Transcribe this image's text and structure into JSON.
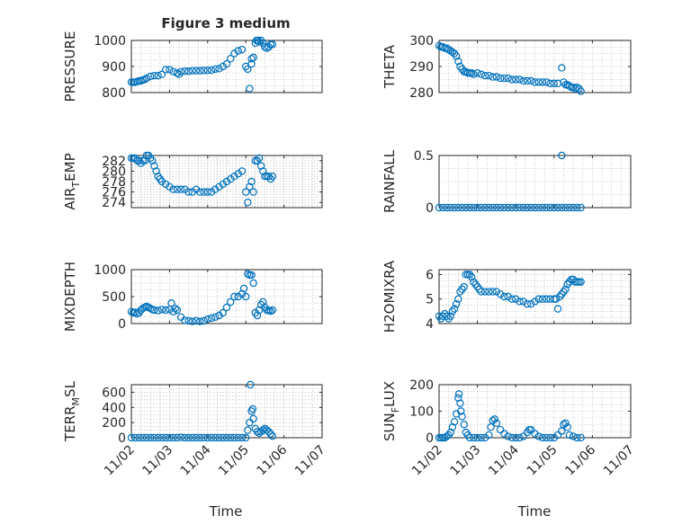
{
  "figure": {
    "title": "Figure 3 medium",
    "xlabel_left": "Time",
    "xlabel_right": "Time",
    "x_ticks": [
      "11/02",
      "11/03",
      "11/04",
      "11/05",
      "11/06",
      "11/07"
    ],
    "marker_color": "#0072bd",
    "grid": "dotted minor + major"
  },
  "chart_data": [
    {
      "type": "scatter",
      "ylabel": "PRESSURE",
      "ylim": [
        800,
        1000
      ],
      "yticks": [
        800,
        900,
        1000
      ],
      "xlim": [
        0,
        5
      ],
      "x": [
        0.0,
        0.05,
        0.1,
        0.15,
        0.2,
        0.25,
        0.3,
        0.35,
        0.4,
        0.5,
        0.6,
        0.7,
        0.8,
        0.9,
        1.0,
        1.1,
        1.2,
        1.25,
        1.3,
        1.4,
        1.5,
        1.6,
        1.7,
        1.8,
        1.9,
        2.0,
        2.1,
        2.2,
        2.3,
        2.4,
        2.5,
        2.6,
        2.7,
        2.8,
        2.9,
        3.0,
        3.05,
        3.1,
        3.15,
        3.15,
        3.2,
        3.25,
        3.28,
        3.32,
        3.35,
        3.4,
        3.45,
        3.5,
        3.55,
        3.6,
        3.65,
        3.7
      ],
      "y": [
        840,
        840,
        840,
        842,
        845,
        845,
        848,
        850,
        855,
        862,
        865,
        865,
        870,
        888,
        888,
        880,
        875,
        870,
        880,
        882,
        882,
        884,
        884,
        884,
        885,
        885,
        886,
        890,
        892,
        900,
        910,
        930,
        950,
        960,
        965,
        900,
        890,
        815,
        910,
        930,
        935,
        990,
        1000,
        1000,
        995,
        1000,
        990,
        975,
        970,
        975,
        985,
        985
      ]
    },
    {
      "type": "scatter",
      "ylabel": "THETA",
      "ylim": [
        280,
        300
      ],
      "yticks": [
        280,
        290,
        300
      ],
      "xlim": [
        0,
        5
      ],
      "x": [
        0.0,
        0.05,
        0.1,
        0.15,
        0.2,
        0.25,
        0.3,
        0.35,
        0.4,
        0.45,
        0.5,
        0.55,
        0.6,
        0.65,
        0.7,
        0.75,
        0.8,
        0.85,
        0.9,
        1.0,
        1.1,
        1.2,
        1.3,
        1.4,
        1.5,
        1.6,
        1.7,
        1.8,
        1.9,
        2.0,
        2.1,
        2.2,
        2.3,
        2.4,
        2.5,
        2.6,
        2.7,
        2.8,
        2.9,
        3.0,
        3.1,
        3.2,
        3.25,
        3.3,
        3.35,
        3.4,
        3.45,
        3.5,
        3.55,
        3.6,
        3.65,
        3.7
      ],
      "y": [
        298,
        297.5,
        297.5,
        297,
        297,
        296.5,
        296,
        295.5,
        295,
        294,
        292,
        290,
        289,
        288,
        288,
        287.5,
        287.5,
        287.5,
        287,
        287.5,
        287,
        286.5,
        286.5,
        286,
        286,
        285.5,
        285.5,
        285.5,
        285,
        285,
        285,
        284.5,
        284.5,
        284.5,
        284,
        284,
        284,
        284,
        283.5,
        283.5,
        283.5,
        289.5,
        284,
        283,
        283,
        282.5,
        282,
        282,
        281.5,
        282,
        281.5,
        280.5
      ]
    },
    {
      "type": "scatter",
      "ylabel": "AIR_TEMP",
      "ylim": [
        273,
        283
      ],
      "yticks": [
        274,
        276,
        278,
        280,
        282
      ],
      "xlim": [
        0,
        5
      ],
      "x": [
        0.0,
        0.05,
        0.1,
        0.15,
        0.2,
        0.25,
        0.3,
        0.35,
        0.4,
        0.45,
        0.5,
        0.55,
        0.6,
        0.65,
        0.7,
        0.75,
        0.8,
        0.9,
        1.0,
        1.1,
        1.2,
        1.3,
        1.4,
        1.5,
        1.6,
        1.7,
        1.8,
        1.9,
        2.0,
        2.1,
        2.2,
        2.3,
        2.4,
        2.5,
        2.6,
        2.7,
        2.8,
        2.9,
        3.0,
        3.05,
        3.1,
        3.15,
        3.2,
        3.25,
        3.3,
        3.35,
        3.4,
        3.45,
        3.5,
        3.55,
        3.6,
        3.65,
        3.7
      ],
      "y": [
        282.5,
        282.5,
        282.5,
        282,
        282,
        281.5,
        282,
        282,
        283,
        283,
        282.5,
        282,
        281,
        280,
        279,
        278.5,
        278,
        277.5,
        277,
        276.5,
        276.5,
        276.5,
        276.5,
        276,
        276,
        276.5,
        276,
        276,
        276,
        276,
        276.5,
        277,
        277.5,
        278,
        278.5,
        279,
        279.5,
        280,
        276,
        274,
        277,
        278,
        276,
        282,
        282,
        282.5,
        281,
        280,
        279,
        279,
        279,
        278.5,
        279
      ]
    },
    {
      "type": "scatter",
      "ylabel": "RAINFALL",
      "ylim": [
        0,
        0.5
      ],
      "yticks": [
        0,
        0.5
      ],
      "xlim": [
        0,
        5
      ],
      "x": [
        0.0,
        0.1,
        0.2,
        0.3,
        0.4,
        0.5,
        0.6,
        0.7,
        0.8,
        0.9,
        1.0,
        1.1,
        1.2,
        1.3,
        1.4,
        1.5,
        1.6,
        1.7,
        1.8,
        1.9,
        2.0,
        2.1,
        2.2,
        2.3,
        2.4,
        2.5,
        2.6,
        2.7,
        2.8,
        2.9,
        3.0,
        3.1,
        3.2,
        3.3,
        3.4,
        3.5,
        3.6,
        3.7,
        3.2
      ],
      "y": [
        0,
        0,
        0,
        0,
        0,
        0,
        0,
        0,
        0,
        0,
        0,
        0,
        0,
        0,
        0,
        0,
        0,
        0,
        0,
        0,
        0,
        0,
        0,
        0,
        0,
        0,
        0,
        0,
        0,
        0,
        0,
        0,
        0,
        0,
        0,
        0,
        0,
        0,
        0.5
      ]
    },
    {
      "type": "scatter",
      "ylabel": "MIXDEPTH",
      "ylim": [
        0,
        1000
      ],
      "yticks": [
        0,
        500,
        1000
      ],
      "xlim": [
        0,
        5
      ],
      "x": [
        0.0,
        0.05,
        0.1,
        0.15,
        0.2,
        0.25,
        0.3,
        0.35,
        0.4,
        0.45,
        0.5,
        0.55,
        0.6,
        0.7,
        0.8,
        0.9,
        1.0,
        1.05,
        1.1,
        1.15,
        1.2,
        1.3,
        1.4,
        1.5,
        1.6,
        1.7,
        1.8,
        1.9,
        2.0,
        2.1,
        2.2,
        2.3,
        2.4,
        2.5,
        2.6,
        2.7,
        2.8,
        2.9,
        2.95,
        3.0,
        3.05,
        3.1,
        3.15,
        3.2,
        3.25,
        3.3,
        3.35,
        3.4,
        3.45,
        3.5,
        3.55,
        3.6,
        3.65,
        3.7
      ],
      "y": [
        220,
        200,
        210,
        180,
        200,
        250,
        280,
        300,
        320,
        300,
        280,
        260,
        250,
        240,
        260,
        250,
        260,
        380,
        220,
        280,
        250,
        120,
        60,
        50,
        40,
        50,
        40,
        50,
        80,
        100,
        120,
        150,
        200,
        300,
        400,
        500,
        500,
        550,
        650,
        500,
        920,
        900,
        900,
        750,
        200,
        150,
        250,
        350,
        400,
        300,
        250,
        240,
        230,
        250
      ]
    },
    {
      "type": "scatter",
      "ylabel": "H2OMIXRA",
      "ylim": [
        4,
        6.2
      ],
      "yticks": [
        4,
        5,
        6
      ],
      "xlim": [
        0,
        5
      ],
      "x": [
        0.0,
        0.05,
        0.1,
        0.15,
        0.2,
        0.25,
        0.3,
        0.35,
        0.4,
        0.45,
        0.5,
        0.55,
        0.6,
        0.65,
        0.7,
        0.75,
        0.8,
        0.85,
        0.9,
        0.95,
        1.0,
        1.05,
        1.1,
        1.2,
        1.3,
        1.4,
        1.5,
        1.6,
        1.7,
        1.8,
        1.9,
        2.0,
        2.1,
        2.2,
        2.3,
        2.4,
        2.5,
        2.6,
        2.7,
        2.8,
        2.9,
        3.0,
        3.05,
        3.1,
        3.15,
        3.2,
        3.25,
        3.3,
        3.35,
        3.4,
        3.45,
        3.5,
        3.55,
        3.6,
        3.65,
        3.7
      ],
      "y": [
        4.3,
        4.2,
        4.3,
        4.4,
        4.3,
        4.2,
        4.3,
        4.5,
        4.6,
        4.8,
        5.0,
        5.3,
        5.4,
        5.5,
        6.0,
        6.0,
        6.0,
        5.9,
        5.7,
        5.6,
        5.5,
        5.4,
        5.3,
        5.3,
        5.3,
        5.3,
        5.3,
        5.2,
        5.1,
        5.1,
        5.0,
        5.0,
        4.9,
        4.9,
        4.8,
        4.8,
        4.9,
        5.0,
        5.0,
        5.0,
        5.0,
        5.0,
        5.0,
        4.6,
        5.1,
        5.2,
        5.3,
        5.4,
        5.6,
        5.7,
        5.8,
        5.8,
        5.7,
        5.7,
        5.7,
        5.7
      ]
    },
    {
      "type": "scatter",
      "ylabel": "TERR_MSL",
      "ylim": [
        0,
        700
      ],
      "yticks": [
        0,
        200,
        400,
        600
      ],
      "xlim": [
        0,
        5
      ],
      "x": [
        0.0,
        0.1,
        0.2,
        0.3,
        0.4,
        0.5,
        0.6,
        0.7,
        0.8,
        0.9,
        1.0,
        1.1,
        1.2,
        1.3,
        1.4,
        1.5,
        1.6,
        1.7,
        1.8,
        1.9,
        2.0,
        2.1,
        2.2,
        2.3,
        2.4,
        2.5,
        2.6,
        2.7,
        2.8,
        2.9,
        3.0,
        3.05,
        3.1,
        3.12,
        3.15,
        3.18,
        3.2,
        3.25,
        3.3,
        3.35,
        3.4,
        3.45,
        3.5,
        3.55,
        3.6,
        3.65,
        3.7
      ],
      "y": [
        0,
        0,
        0,
        0,
        0,
        0,
        0,
        0,
        0,
        0,
        0,
        0,
        0,
        5,
        0,
        0,
        0,
        0,
        0,
        0,
        0,
        0,
        0,
        0,
        0,
        0,
        0,
        0,
        0,
        0,
        0,
        100,
        200,
        700,
        350,
        380,
        250,
        120,
        80,
        60,
        80,
        100,
        120,
        100,
        80,
        50,
        20
      ]
    },
    {
      "type": "scatter",
      "ylabel": "SUN_FLUX",
      "ylim": [
        0,
        200
      ],
      "yticks": [
        0,
        100,
        200
      ],
      "xlim": [
        0,
        5
      ],
      "x": [
        0.0,
        0.05,
        0.1,
        0.15,
        0.2,
        0.25,
        0.3,
        0.35,
        0.4,
        0.45,
        0.5,
        0.52,
        0.55,
        0.57,
        0.6,
        0.65,
        0.7,
        0.75,
        0.8,
        0.9,
        1.0,
        1.1,
        1.2,
        1.3,
        1.35,
        1.4,
        1.45,
        1.5,
        1.6,
        1.7,
        1.8,
        1.9,
        2.0,
        2.1,
        2.2,
        2.3,
        2.35,
        2.4,
        2.5,
        2.6,
        2.7,
        2.8,
        2.9,
        3.0,
        3.1,
        3.2,
        3.25,
        3.3,
        3.35,
        3.4,
        3.5,
        3.6,
        3.7
      ],
      "y": [
        0,
        0,
        0,
        0,
        5,
        10,
        20,
        40,
        60,
        90,
        150,
        165,
        130,
        100,
        80,
        50,
        20,
        10,
        0,
        0,
        0,
        0,
        0,
        10,
        40,
        65,
        70,
        55,
        30,
        15,
        5,
        0,
        0,
        0,
        5,
        20,
        30,
        30,
        15,
        5,
        0,
        0,
        0,
        0,
        10,
        25,
        50,
        55,
        40,
        10,
        5,
        0,
        0
      ]
    }
  ]
}
